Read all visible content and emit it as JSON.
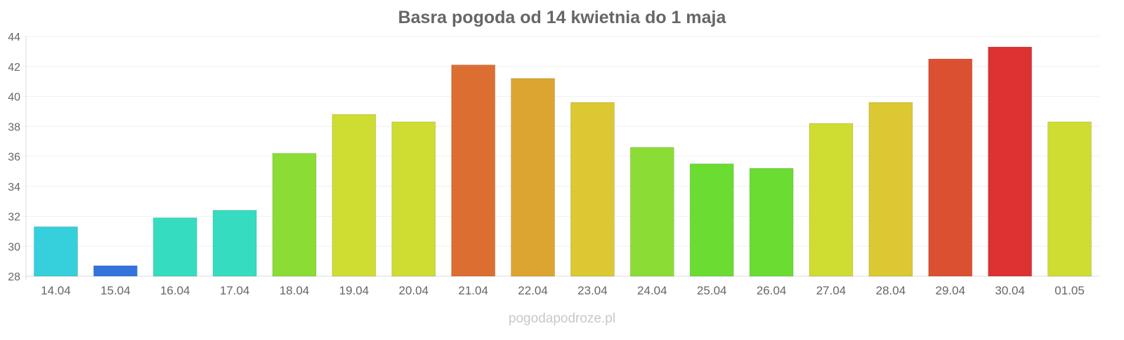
{
  "chart_data": {
    "type": "bar",
    "title": "Basra pogoda od 14 kwietnia do 1 maja",
    "xlabel": "",
    "ylabel": "",
    "ylim": [
      28,
      44
    ],
    "yticks": [
      28,
      30,
      32,
      34,
      36,
      38,
      40,
      42,
      44
    ],
    "grid": true,
    "categories": [
      "14.04",
      "15.04",
      "16.04",
      "17.04",
      "18.04",
      "19.04",
      "20.04",
      "21.04",
      "22.04",
      "23.04",
      "24.04",
      "25.04",
      "26.04",
      "27.04",
      "28.04",
      "29.04",
      "30.04",
      "01.05"
    ],
    "values": [
      31.3,
      28.7,
      31.9,
      32.4,
      36.2,
      38.8,
      38.3,
      42.1,
      41.2,
      39.6,
      36.6,
      35.5,
      35.2,
      38.2,
      39.6,
      42.5,
      43.3,
      38.3
    ],
    "colors": [
      "#36cfdc",
      "#3273dc",
      "#36dcbf",
      "#36dcbf",
      "#8cdc36",
      "#cfdc32",
      "#cfdc32",
      "#dc6e32",
      "#dca532",
      "#dcc832",
      "#8cdc36",
      "#6adc32",
      "#6adc32",
      "#cfdc32",
      "#dcc832",
      "#dc5032",
      "#dc3232",
      "#cfdc32"
    ]
  },
  "footer": {
    "watermark": "pogodapodroze.pl"
  }
}
